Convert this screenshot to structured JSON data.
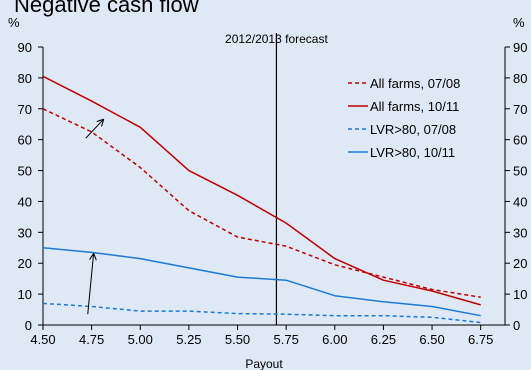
{
  "cropped_title": "Negative cash flow",
  "chart_data": {
    "type": "line",
    "xlabel": "Payout",
    "ylabel_left": "%",
    "ylabel_right": "%",
    "x": [
      4.5,
      4.75,
      5.0,
      5.25,
      5.5,
      5.75,
      6.0,
      6.25,
      6.5,
      6.75
    ],
    "x_tick_labels": [
      "4.50",
      "4.75",
      "5.00",
      "5.25",
      "5.50",
      "5.75",
      "6.00",
      "6.25",
      "6.50",
      "6.75"
    ],
    "xlim": [
      4.5,
      6.875
    ],
    "ylim": [
      0,
      90
    ],
    "y_ticks": [
      0,
      10,
      20,
      30,
      40,
      50,
      60,
      70,
      80,
      90
    ],
    "vline": {
      "x": 5.7,
      "label": "2012/2013 forecast"
    },
    "series": [
      {
        "name": "All farms, 07/08",
        "color": "#c00000",
        "dash": true,
        "values": [
          70,
          62.5,
          51,
          37,
          28.5,
          25.5,
          19.5,
          15.5,
          11.5,
          9
        ]
      },
      {
        "name": "All farms, 10/11",
        "color": "#c00000",
        "dash": false,
        "values": [
          80.5,
          72.5,
          64,
          50,
          42,
          33,
          21.5,
          14.5,
          11,
          6.5
        ]
      },
      {
        "name": "LVR>80, 07/08",
        "color": "#1a7ad4",
        "dash": true,
        "values": [
          7,
          6,
          4.5,
          4.5,
          3.7,
          3.5,
          3,
          3,
          2.5,
          0.8
        ]
      },
      {
        "name": "LVR>80, 10/11",
        "color": "#1a7ad4",
        "dash": false,
        "values": [
          25,
          23.5,
          21.5,
          18.5,
          15.5,
          14.5,
          9.5,
          7.5,
          6,
          3
        ]
      }
    ],
    "annotation_arrows": [
      {
        "from": [
          4.72,
          60.5
        ],
        "to": [
          4.81,
          66.5
        ]
      },
      {
        "from": [
          4.73,
          3.5
        ],
        "to": [
          4.76,
          23
        ]
      }
    ],
    "legend_position": "top-right",
    "grid": false
  }
}
